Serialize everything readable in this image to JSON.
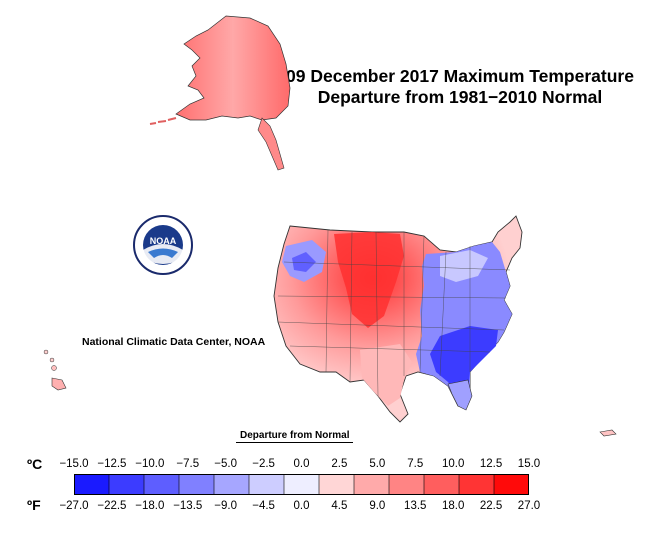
{
  "title_line1": "09 December 2017 Maximum Temperature",
  "title_line2": "Departure from 1981−2010 Normal",
  "credit": "National Climatic Data Center, NOAA",
  "logo_text": "NOAA",
  "legend": {
    "caption": "Departure from Normal",
    "celsius_unit": "ºC",
    "fahrenheit_unit": "ºF",
    "celsius_ticks": [
      "−15.0",
      "−12.5",
      "−10.0",
      "−7.5",
      "−5.0",
      "−2.5",
      "0.0",
      "2.5",
      "5.0",
      "7.5",
      "10.0",
      "12.5",
      "15.0"
    ],
    "fahrenheit_ticks": [
      "−27.0",
      "−22.5",
      "−18.0",
      "−13.5",
      "−9.0",
      "−4.5",
      "0.0",
      "4.5",
      "9.0",
      "13.5",
      "18.0",
      "22.5",
      "27.0"
    ],
    "colors": [
      "#1a1aff",
      "#3c3cff",
      "#5e5eff",
      "#8080ff",
      "#a6a6ff",
      "#cdcdff",
      "#eeeeff",
      "#ffd6d6",
      "#ffaaaa",
      "#ff8484",
      "#ff5e5e",
      "#ff3434",
      "#ff0a0a"
    ]
  },
  "colors": {
    "warm_anomaly": "#ff5a5a",
    "cold_anomaly": "#4a4aff",
    "neutral": "#f4f0f4"
  }
}
